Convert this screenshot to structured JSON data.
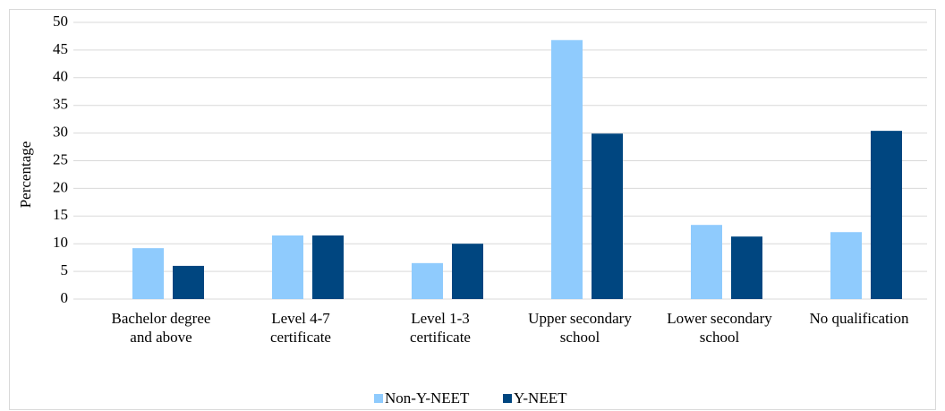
{
  "chart_data": {
    "type": "bar",
    "y_label": "Percentage",
    "categories": [
      [
        "Bachelor degree",
        "and above"
      ],
      [
        "Level 4-7",
        "certificate"
      ],
      [
        "Level 1-3",
        "certificate"
      ],
      [
        "Upper secondary",
        "school"
      ],
      [
        "Lower secondary",
        "school"
      ],
      [
        "No qualification"
      ]
    ],
    "series": [
      {
        "name": "Non-Y-NEET",
        "color": "#8fcbfd",
        "values": [
          9.2,
          11.5,
          6.5,
          46.8,
          13.4,
          12.1
        ]
      },
      {
        "name": "Y-NEET",
        "color": "#004680",
        "values": [
          6.0,
          11.5,
          10.0,
          29.9,
          11.3,
          30.4
        ]
      }
    ],
    "ylim": [
      0,
      50
    ],
    "yticks": [
      0,
      5,
      10,
      15,
      20,
      25,
      30,
      35,
      40,
      45,
      50
    ],
    "grid": true,
    "legend": "bottom"
  }
}
